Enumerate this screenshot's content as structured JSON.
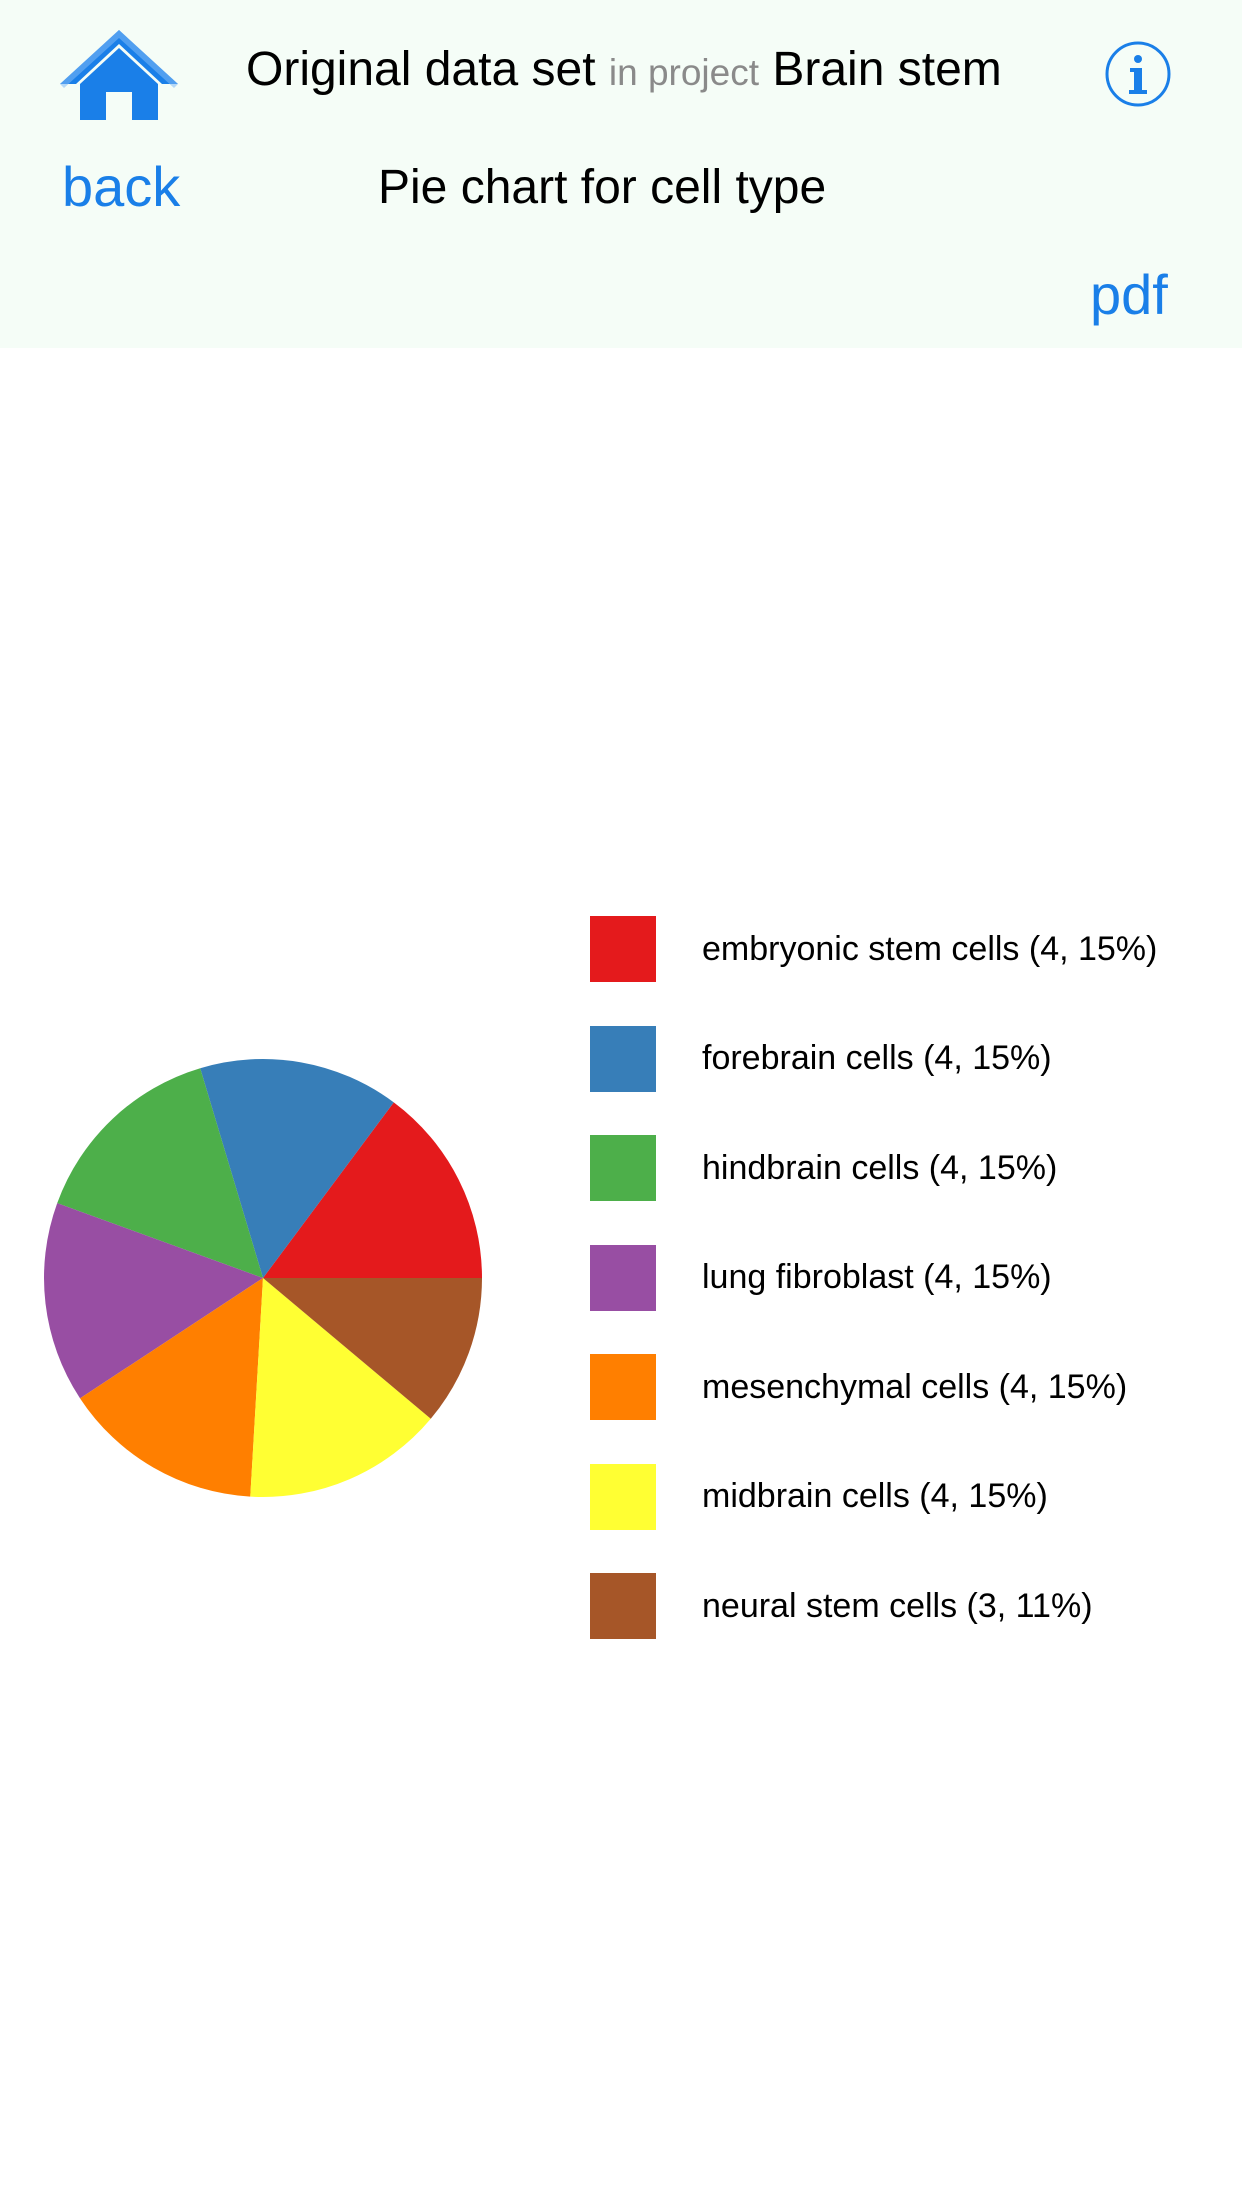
{
  "header": {
    "title_main": "Original data set",
    "title_sep": "in project",
    "title_project": "Brain stem",
    "back_label": "back",
    "chart_title": "Pie chart for cell type",
    "pdf_label": "pdf"
  },
  "icons": {
    "home": "home-icon",
    "info": "info-icon"
  },
  "colors": {
    "header_bg": "#f5fdf7",
    "link": "#1a7fe8"
  },
  "chart_data": {
    "type": "pie",
    "categories": [
      "embryonic stem cells",
      "forebrain cells",
      "hindbrain cells",
      "lung fibroblast",
      "mesenchymal cells",
      "midbrain cells",
      "neural stem cells"
    ],
    "values": [
      4,
      4,
      4,
      4,
      4,
      4,
      3
    ],
    "labels": [
      "embryonic stem cells (4, 15%)",
      "forebrain cells (4, 15%)",
      "hindbrain cells (4, 15%)",
      "lung fibroblast (4, 15%)",
      "mesenchymal cells (4, 15%)",
      "midbrain cells (4, 15%)",
      "neural stem cells (3, 11%)"
    ],
    "colors": [
      "#e41a1c",
      "#377eb8",
      "#4daf4a",
      "#984ea3",
      "#ff7f00",
      "#ffff33",
      "#a65628"
    ],
    "legend_position": "right"
  }
}
